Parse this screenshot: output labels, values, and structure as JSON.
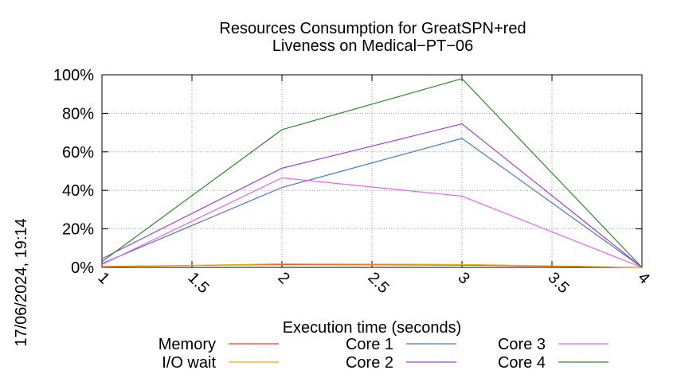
{
  "chart_data": {
    "type": "line",
    "title_line1": "Resources Consumption for GreatSPN+red",
    "title_line2": "Liveness on Medical−PT−06",
    "xlabel": "Execution time (seconds)",
    "ylabel": "",
    "side_label": "17/06/2024, 19:14",
    "xlim": [
      1,
      4
    ],
    "ylim": [
      0,
      100
    ],
    "x_ticks": [
      1,
      1.5,
      2,
      2.5,
      3,
      3.5,
      4
    ],
    "x_tick_labels": [
      "1",
      "1.5",
      "2",
      "2.5",
      "3",
      "3.5",
      "4"
    ],
    "y_ticks": [
      0,
      20,
      40,
      60,
      80,
      100
    ],
    "y_tick_labels": [
      "0%",
      "20%",
      "40%",
      "60%",
      "80%",
      "100%"
    ],
    "grid": true,
    "legend_position": "bottom",
    "x": [
      1,
      2,
      3,
      4
    ],
    "series": [
      {
        "name": "Memory",
        "color": "#e8412b",
        "values": [
          0.5,
          1.5,
          1.2,
          0
        ]
      },
      {
        "name": "I/O wait",
        "color": "#f0a500",
        "values": [
          0.3,
          1.8,
          1.5,
          0
        ]
      },
      {
        "name": "Core 1",
        "color": "#4a78c8",
        "values": [
          2,
          41.5,
          67,
          0
        ]
      },
      {
        "name": "Core 2",
        "color": "#a040e0",
        "values": [
          4.5,
          51.5,
          74.5,
          0
        ]
      },
      {
        "name": "Core 3",
        "color": "#f060f0",
        "values": [
          1.5,
          46.5,
          37,
          0
        ]
      },
      {
        "name": "Core 4",
        "color": "#2e8b2e",
        "values": [
          3,
          71.5,
          98,
          0
        ]
      }
    ]
  }
}
